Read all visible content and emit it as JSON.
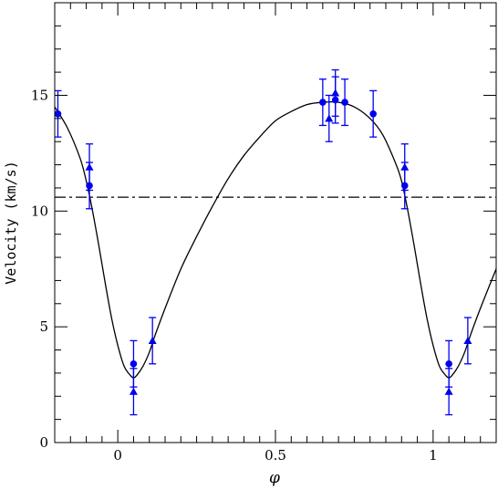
{
  "chart_data": {
    "type": "scatter",
    "title": "",
    "xlabel": "φ",
    "ylabel": "Velocity (km/s)",
    "xlim": [
      -0.2,
      1.2
    ],
    "ylim": [
      0,
      19
    ],
    "x_ticks": [
      {
        "value": 0,
        "label": "0"
      },
      {
        "value": 0.5,
        "label": "0.5"
      },
      {
        "value": 1,
        "label": "1"
      }
    ],
    "y_ticks": [
      {
        "value": 0,
        "label": "0"
      },
      {
        "value": 5,
        "label": "5"
      },
      {
        "value": 10,
        "label": "10"
      },
      {
        "value": 15,
        "label": "15"
      }
    ],
    "x_minor_step": 0.05,
    "y_minor_step": 1,
    "grid": false,
    "reference_line": {
      "y": 10.6,
      "style": "dash-dot"
    },
    "colors": {
      "points": "#0000ee",
      "curve": "#000000",
      "axes": "#000000"
    },
    "series": [
      {
        "marker": "circle",
        "points": [
          {
            "x": -0.19,
            "y": 14.2,
            "err": 1.0
          },
          {
            "x": -0.09,
            "y": 11.1,
            "err": 1.0
          },
          {
            "x": 0.05,
            "y": 3.4,
            "err": 1.0
          },
          {
            "x": 0.65,
            "y": 14.7,
            "err": 1.0
          },
          {
            "x": 0.69,
            "y": 14.8,
            "err": 1.0
          },
          {
            "x": 0.72,
            "y": 14.7,
            "err": 1.0
          },
          {
            "x": 0.81,
            "y": 14.2,
            "err": 1.0
          },
          {
            "x": 0.91,
            "y": 11.1,
            "err": 1.0
          },
          {
            "x": 1.05,
            "y": 3.4,
            "err": 1.0
          }
        ]
      },
      {
        "marker": "triangle",
        "points": [
          {
            "x": -0.09,
            "y": 11.9,
            "err": 1.0
          },
          {
            "x": 0.05,
            "y": 2.2,
            "err": 1.0
          },
          {
            "x": 0.11,
            "y": 4.4,
            "err": 1.0
          },
          {
            "x": 0.67,
            "y": 14.0,
            "err": 1.0
          },
          {
            "x": 0.69,
            "y": 15.1,
            "err": 1.0
          },
          {
            "x": 0.91,
            "y": 11.9,
            "err": 1.0
          },
          {
            "x": 1.05,
            "y": 2.2,
            "err": 1.0
          },
          {
            "x": 1.11,
            "y": 4.4,
            "err": 1.0
          }
        ]
      }
    ],
    "model_curve": {
      "style": "solid",
      "x": [
        -0.2,
        -0.16,
        -0.12,
        -0.1,
        -0.08,
        -0.06,
        -0.04,
        -0.02,
        0.0,
        0.02,
        0.04,
        0.05,
        0.06,
        0.08,
        0.1,
        0.12,
        0.15,
        0.2,
        0.25,
        0.3,
        0.35,
        0.4,
        0.45,
        0.5,
        0.55,
        0.6,
        0.65,
        0.7,
        0.75,
        0.8,
        0.84,
        0.88,
        0.9,
        0.92,
        0.94,
        0.96,
        0.98,
        1.0,
        1.02,
        1.04,
        1.05,
        1.06,
        1.08,
        1.1,
        1.12,
        1.15,
        1.2
      ],
      "y": [
        14.5,
        13.6,
        12.3,
        11.3,
        10.0,
        8.5,
        6.9,
        5.4,
        4.2,
        3.3,
        2.9,
        2.8,
        2.9,
        3.3,
        3.9,
        4.7,
        5.8,
        7.5,
        8.9,
        10.2,
        11.4,
        12.4,
        13.2,
        13.9,
        14.3,
        14.6,
        14.7,
        14.7,
        14.5,
        14.0,
        13.3,
        12.1,
        11.3,
        10.0,
        8.5,
        6.9,
        5.4,
        4.2,
        3.3,
        2.9,
        2.8,
        2.9,
        3.3,
        3.9,
        4.7,
        5.8,
        7.5
      ]
    }
  }
}
